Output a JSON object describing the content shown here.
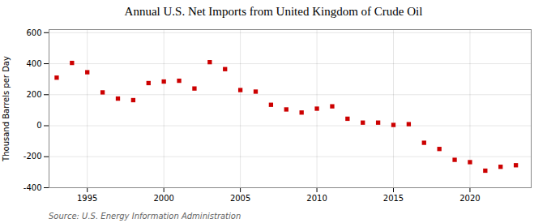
{
  "chart_data": {
    "type": "scatter",
    "title": "Annual U.S. Net Imports from United Kingdom of Crude Oil",
    "ylabel": "Thousand Barrels per Day",
    "source": "Source: U.S. Energy Information Administration",
    "x": [
      1993,
      1994,
      1995,
      1996,
      1997,
      1998,
      1999,
      2000,
      2001,
      2002,
      2003,
      2004,
      2005,
      2006,
      2007,
      2008,
      2009,
      2010,
      2011,
      2012,
      2013,
      2014,
      2015,
      2016,
      2017,
      2018,
      2019,
      2020,
      2021,
      2022,
      2023
    ],
    "values": [
      310,
      405,
      345,
      215,
      175,
      165,
      275,
      285,
      290,
      240,
      410,
      365,
      230,
      220,
      135,
      105,
      85,
      110,
      125,
      45,
      20,
      20,
      5,
      10,
      -110,
      -150,
      -220,
      -235,
      -290,
      -265,
      -255
    ],
    "color": "#cc0000",
    "marker": "square",
    "xlim": [
      1992.5,
      2024
    ],
    "ylim": [
      -400,
      620
    ],
    "xticks": [
      1995,
      2000,
      2005,
      2010,
      2015,
      2020
    ],
    "yticks": [
      -400,
      -200,
      0,
      200,
      400,
      600
    ],
    "grid": true
  }
}
